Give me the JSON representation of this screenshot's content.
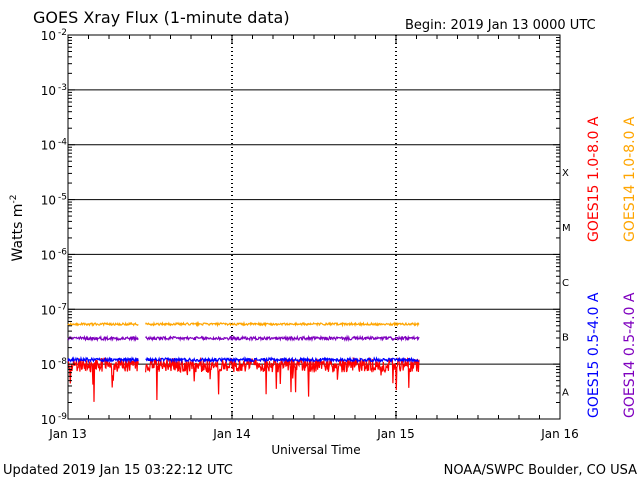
{
  "chart_data": {
    "type": "line",
    "title": "GOES Xray Flux (1-minute data)",
    "begin_label": "Begin:  2019 Jan 13 0000 UTC",
    "xlabel": "Universal Time",
    "ylabel": "Watts m",
    "ylabel_sup": "-2",
    "x_days": [
      0,
      1,
      2,
      3
    ],
    "x_tick_labels": [
      "Jan 13",
      "Jan 14",
      "Jan 15",
      "Jan 16"
    ],
    "y_log_range": [
      -9,
      -2
    ],
    "y_tick_exponents": [
      -2,
      -3,
      -4,
      -5,
      -6,
      -7,
      -8,
      -9
    ],
    "y_tick_base": "10",
    "flare_classes": [
      {
        "label": "X",
        "exponent": -4
      },
      {
        "label": "M",
        "exponent": -5
      },
      {
        "label": "C",
        "exponent": -6
      },
      {
        "label": "B",
        "exponent": -7
      },
      {
        "label": "A",
        "exponent": -8
      }
    ],
    "data_end_day": 2.14,
    "gap_days": [
      0.43,
      0.47
    ],
    "series": [
      {
        "name": "GOES15 1.0-8.0 A",
        "color": "#ff0000",
        "log_flux_mean": -8.02,
        "noise": 0.13
      },
      {
        "name": "GOES14 1.0-8.0 A",
        "color": "#ffa500",
        "log_flux_mean": -7.27,
        "noise": 0.02
      },
      {
        "name": "GOES15 0.5-4.0 A",
        "color": "#0000ff",
        "log_flux_mean": -7.92,
        "noise": 0.03
      },
      {
        "name": "GOES14 0.5-4.0 A",
        "color": "#7f00bf",
        "log_flux_mean": -7.53,
        "noise": 0.03
      }
    ]
  },
  "footer": {
    "updated": "Updated 2019 Jan 15 03:22:12 UTC",
    "credit": "NOAA/SWPC Boulder, CO USA"
  }
}
